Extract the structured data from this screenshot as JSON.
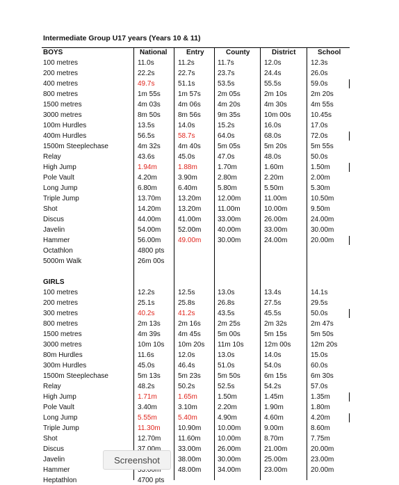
{
  "title": "Intermediate Group U17 years (Years 10 & 11)",
  "columns": [
    "Boys_label_col",
    "Name"
  ],
  "headers": {
    "event": "BOYS",
    "national": "National",
    "entry": "Entry",
    "county": "County",
    "district": "District",
    "school": "School"
  },
  "boys": [
    {
      "event": "100 metres",
      "national": "11.0s",
      "entry": "11.2s",
      "county": "11.7s",
      "district": "12.0s",
      "school": "12.3s"
    },
    {
      "event": "200 metres",
      "national": "22.2s",
      "entry": "22.7s",
      "county": "23.7s",
      "district": "24.4s",
      "school": "26.0s"
    },
    {
      "event": "400 metres",
      "national": "49.7s",
      "national_red": true,
      "entry": "51.1s",
      "county": "53.5s",
      "district": "55.5s",
      "school": "59.0s",
      "bar": true
    },
    {
      "event": "800 metres",
      "national": "1m 55s",
      "entry": "1m 57s",
      "county": "2m 05s",
      "district": "2m 10s",
      "school": "2m 20s"
    },
    {
      "event": "1500 metres",
      "national": "4m 03s",
      "entry": "4m 06s",
      "county": "4m 20s",
      "district": "4m 30s",
      "school": "4m 55s"
    },
    {
      "event": "3000 metres",
      "national": "8m 50s",
      "entry": "8m 56s",
      "county": "9m 35s",
      "district": "10m 00s",
      "school": "10.45s"
    },
    {
      "event": "100m Hurdles",
      "national": "13.5s",
      "entry": "14.0s",
      "county": "15.2s",
      "district": "16.0s",
      "school": "17.0s"
    },
    {
      "event": "400m Hurdles",
      "national": "56.5s",
      "entry": "58.7s",
      "entry_red": true,
      "county": "64.0s",
      "district": "68.0s",
      "school": "72.0s",
      "bar": true
    },
    {
      "event": "1500m Steeplechase",
      "national": "4m 32s",
      "entry": "4m 40s",
      "county": "5m 05s",
      "district": "5m 20s",
      "school": "5m 55s"
    },
    {
      "event": "Relay",
      "national": "43.6s",
      "entry": "45.0s",
      "county": "47.0s",
      "district": "48.0s",
      "school": "50.0s"
    },
    {
      "event": "High Jump",
      "national": "1.94m",
      "national_red": true,
      "entry": "1.88m",
      "entry_red": true,
      "county": "1.70m",
      "district": "1.60m",
      "school": "1.50m",
      "bar": true
    },
    {
      "event": "Pole Vault",
      "national": "4.20m",
      "entry": "3.90m",
      "county": "2.80m",
      "district": "2.20m",
      "school": "2.00m"
    },
    {
      "event": "Long Jump",
      "national": "6.80m",
      "entry": "6.40m",
      "county": "5.80m",
      "district": "5.50m",
      "school": "5.30m"
    },
    {
      "event": "Triple Jump",
      "national": "13.70m",
      "entry": "13.20m",
      "county": "12.00m",
      "district": "11.00m",
      "school": "10.50m"
    },
    {
      "event": "Shot",
      "national": "14.20m",
      "entry": "13.20m",
      "county": "11.00m",
      "district": "10.00m",
      "school": "9.50m"
    },
    {
      "event": "Discus",
      "national": "44.00m",
      "entry": "41.00m",
      "county": "33.00m",
      "district": "26.00m",
      "school": "24.00m"
    },
    {
      "event": "Javelin",
      "national": "54.00m",
      "entry": "52.00m",
      "county": "40.00m",
      "district": "33.00m",
      "school": "30.00m"
    },
    {
      "event": "Hammer",
      "national": "56.00m",
      "entry": "49.00m",
      "entry_red": true,
      "county": "30.00m",
      "district": "24.00m",
      "school": "20.00m",
      "bar": true
    },
    {
      "event": "Octathlon",
      "national": "4800 pts",
      "entry": "",
      "county": "",
      "district": "",
      "school": ""
    },
    {
      "event": "5000m Walk",
      "national": "26m 00s",
      "entry": "",
      "county": "",
      "district": "",
      "school": ""
    }
  ],
  "girls_label": "GIRLS",
  "girls": [
    {
      "event": "100 metres",
      "national": "12.2s",
      "entry": "12.5s",
      "county": "13.0s",
      "district": "13.4s",
      "school": "14.1s"
    },
    {
      "event": "200 metres",
      "national": "25.1s",
      "entry": "25.8s",
      "county": "26.8s",
      "district": "27.5s",
      "school": "29.5s"
    },
    {
      "event": "300 metres",
      "national": "40.2s",
      "national_red": true,
      "entry": "41.2s",
      "entry_red": true,
      "county": "43.5s",
      "district": "45.5s",
      "school": "50.0s",
      "bar": true
    },
    {
      "event": "800 metres",
      "national": "2m 13s",
      "entry": "2m 16s",
      "county": "2m 25s",
      "district": "2m 32s",
      "school": "2m 47s"
    },
    {
      "event": "1500 metres",
      "national": "4m 39s",
      "entry": "4m 45s",
      "county": "5m 00s",
      "district": "5m 15s",
      "school": "5m 50s"
    },
    {
      "event": "3000 metres",
      "national": "10m 10s",
      "entry": "10m 20s",
      "county": "11m 10s",
      "district": "12m 00s",
      "school": "12m 20s"
    },
    {
      "event": "80m Hurdles",
      "national": "11.6s",
      "entry": "12.0s",
      "county": "13.0s",
      "district": "14.0s",
      "school": "15.0s"
    },
    {
      "event": "300m Hurdles",
      "national": "45.0s",
      "entry": "46.4s",
      "county": "51.0s",
      "district": "54.0s",
      "school": "60.0s"
    },
    {
      "event": "1500m Steeplechase",
      "national": "5m 13s",
      "entry": "5m 23s",
      "county": "5m 50s",
      "district": "6m 15s",
      "school": "6m 30s"
    },
    {
      "event": "Relay",
      "national": "48.2s",
      "entry": "50.2s",
      "county": "52.5s",
      "district": "54.2s",
      "school": "57.0s"
    },
    {
      "event": "High Jump",
      "national": "1.71m",
      "national_red": true,
      "entry": "1.65m",
      "entry_red": true,
      "county": "1.50m",
      "district": "1.45m",
      "school": "1.35m",
      "bar": true
    },
    {
      "event": "Pole Vault",
      "national": "3.40m",
      "entry": "3.10m",
      "county": "2.20m",
      "district": "1.90m",
      "school": "1.80m"
    },
    {
      "event": "Long Jump",
      "national": "5.55m",
      "national_red": true,
      "entry": "5.40m",
      "entry_red": true,
      "county": "4.90m",
      "district": "4.60m",
      "school": "4.20m",
      "bar": true
    },
    {
      "event": "Triple Jump",
      "national": "11.30m",
      "national_red": true,
      "entry": "10.90m",
      "county": "10.00m",
      "district": "9.00m",
      "school": "8.60m"
    },
    {
      "event": "Shot",
      "national": "12.70m",
      "entry": "11.60m",
      "county": "10.00m",
      "district": "8.70m",
      "school": "7.75m"
    },
    {
      "event": "Discus",
      "national": "37.00m",
      "entry": "33.00m",
      "county": "26.00m",
      "district": "21.00m",
      "school": "20.00m"
    },
    {
      "event": "Javelin",
      "national": "",
      "entry": "38.00m",
      "county": "30.00m",
      "district": "25.00m",
      "school": "23.00m"
    },
    {
      "event": "Hammer",
      "national": "53.00m",
      "entry": "48.00m",
      "county": "34.00m",
      "district": "23.00m",
      "school": "20.00m"
    },
    {
      "event": "Heptathlon",
      "national": "4700 pts",
      "entry": "",
      "county": "",
      "district": "",
      "school": ""
    }
  ],
  "tooltip": "Screenshot",
  "colors": {
    "highlight": "#e0241b",
    "text": "#111111"
  }
}
